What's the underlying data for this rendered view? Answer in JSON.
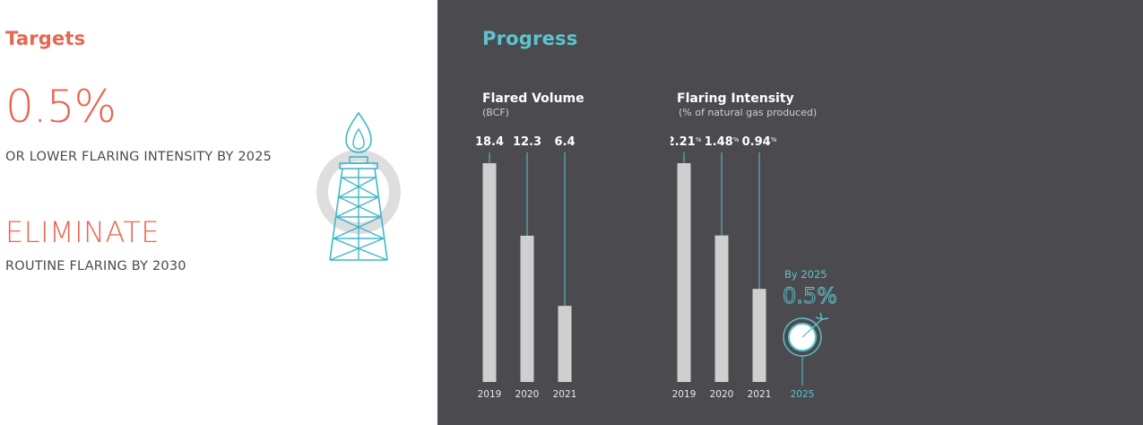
{
  "targets": {
    "title": "Targets",
    "target1_value": "0.5%",
    "target1_desc": "OR LOWER FLARING INTENSITY BY 2025",
    "target2_value": "ELIMINATE",
    "target2_desc": "ROUTINE FLARING BY 2030",
    "icon": "flare-rig-icon"
  },
  "progress": {
    "title": "Progress"
  },
  "colors": {
    "accent_orange": "#e8664f",
    "accent_cyan": "#5cc4cf",
    "panel_bg": "#4b4a4f",
    "bar": "#cfcfcf"
  },
  "chart_data": [
    {
      "type": "bar",
      "title": "Flared Volume",
      "subtitle": "(BCF)",
      "categories": [
        "2019",
        "2020",
        "2021"
      ],
      "values": [
        18.4,
        12.3,
        6.4
      ],
      "value_labels": [
        "18.4",
        "12.3",
        "6.4"
      ],
      "ylim": [
        0,
        18.4
      ]
    },
    {
      "type": "bar",
      "title": "Flaring Intensity",
      "subtitle": "(% of natural gas produced)",
      "categories": [
        "2019",
        "2020",
        "2021"
      ],
      "values": [
        2.21,
        1.48,
        0.94
      ],
      "value_labels": [
        "2.21",
        "1.48",
        "0.94"
      ],
      "value_suffix": "%",
      "ylim": [
        0,
        2.21
      ],
      "target": {
        "category": "2025",
        "value": 0.5,
        "value_label": "0.5%",
        "caption": "By 2025",
        "icon": "target-icon"
      }
    }
  ]
}
